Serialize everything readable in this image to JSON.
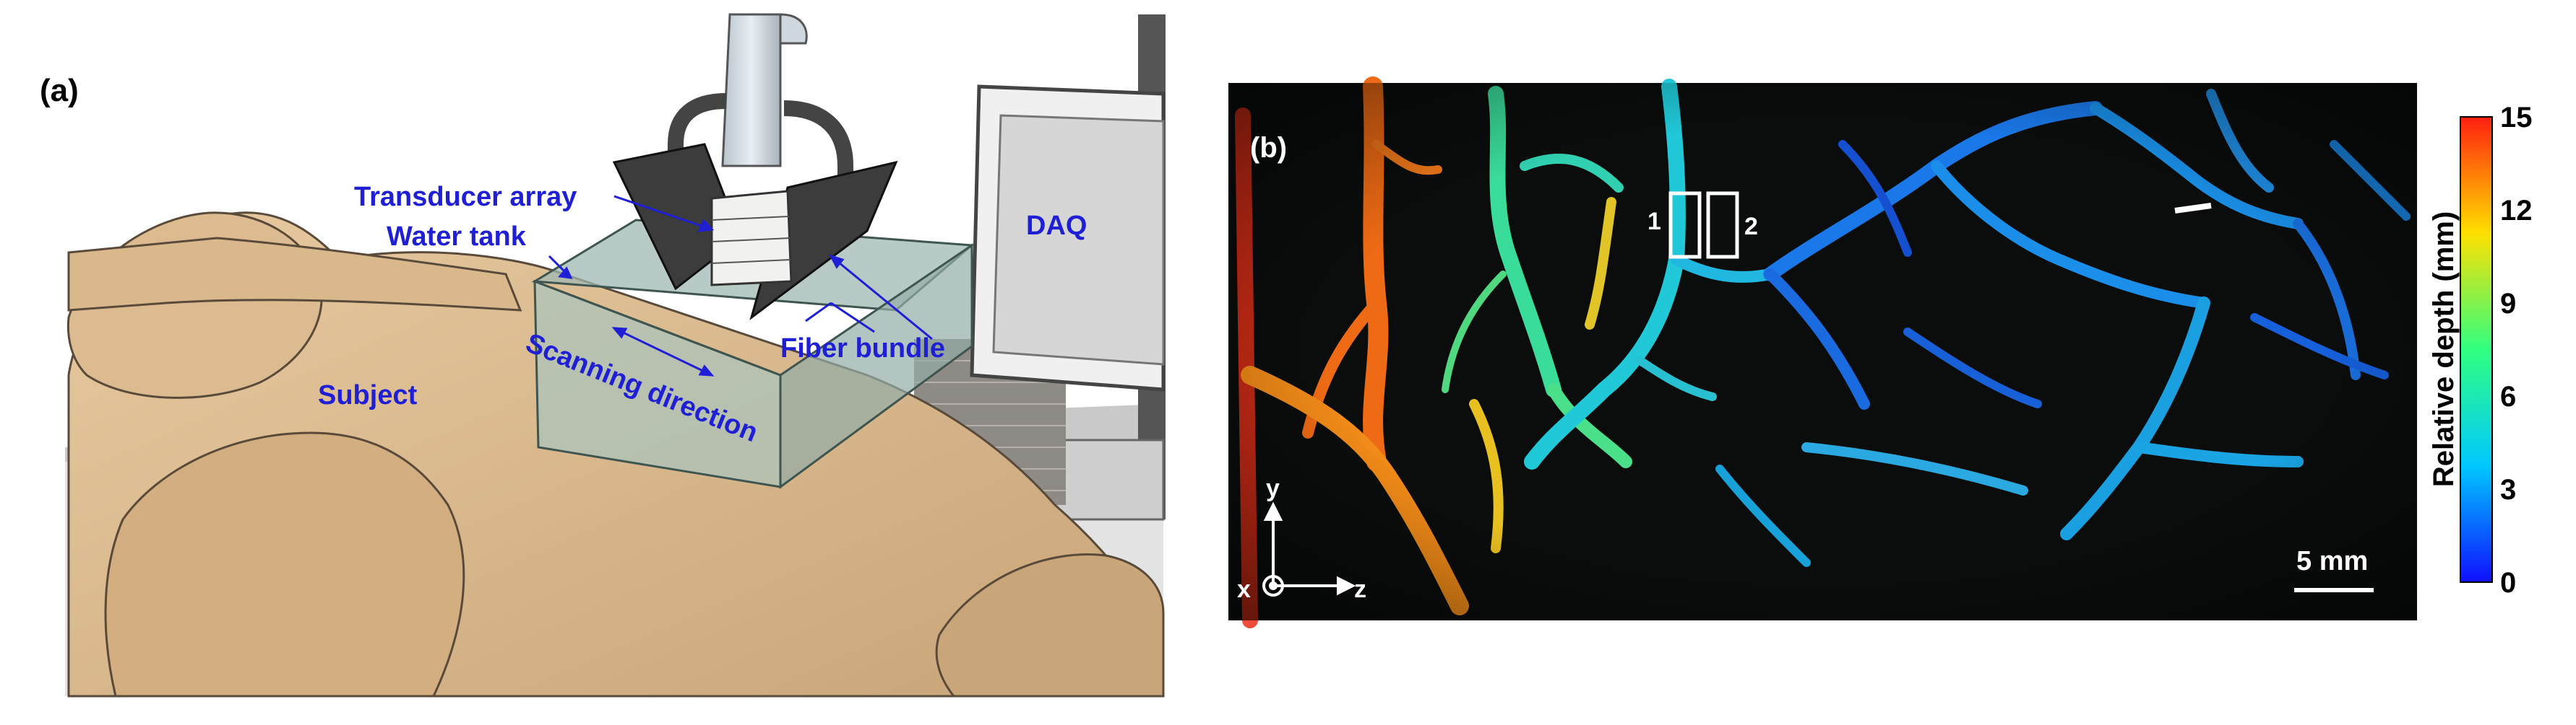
{
  "panel_a": {
    "label": "(a)",
    "callouts": {
      "transducer_array": "Transducer array",
      "water_tank": "Water tank",
      "daq": "DAQ",
      "fiber_bundle": "Fiber bundle",
      "scanning_direction": "Scanning direction",
      "subject": "Subject"
    }
  },
  "panel_b": {
    "label": "(b)",
    "roi_labels": [
      "1",
      "2"
    ],
    "scale_bar": "5 mm",
    "axes": {
      "y": "y",
      "x": "x",
      "z": "z"
    },
    "colorbar": {
      "title": "Relative depth (mm)",
      "ticks": [
        "0",
        "3",
        "6",
        "9",
        "12",
        "15"
      ],
      "range": [
        0,
        15
      ],
      "colors": [
        "#1010ff",
        "#00c8ff",
        "#30ff80",
        "#ffe000",
        "#ff2010"
      ]
    }
  }
}
